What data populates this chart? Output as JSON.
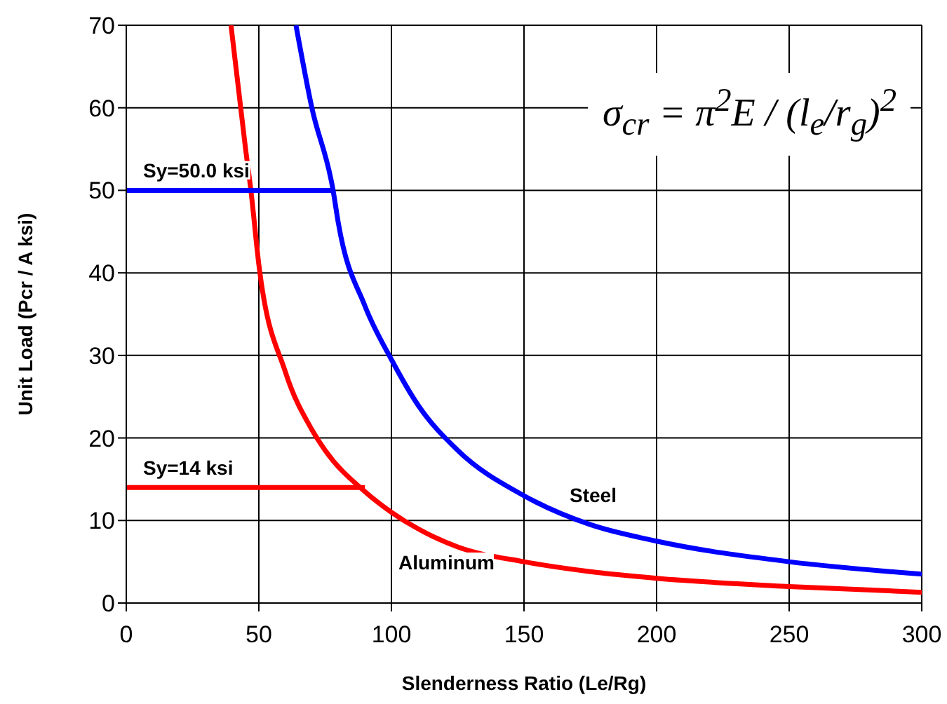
{
  "chart_data": {
    "type": "line",
    "xlabel": "Slenderness Ratio  (Le/Rg)",
    "ylabel": "Unit Load  (Pcr / A  ksi)",
    "xlim": [
      0,
      300
    ],
    "xticks": [
      0,
      50,
      100,
      150,
      200,
      250,
      300
    ],
    "ylim": [
      0,
      70
    ],
    "yticks": [
      0,
      10,
      20,
      30,
      40,
      50,
      60,
      70
    ],
    "grid": true,
    "series": [
      {
        "color": "#0000ff",
        "x": [
          64,
          70,
          78,
          80,
          90,
          100,
          110,
          125,
          150,
          175,
          200,
          250,
          300
        ],
        "values": [
          70,
          60,
          50,
          46,
          36,
          29.5,
          24,
          18.5,
          13,
          9.5,
          7.5,
          5,
          3.5
        ]
      },
      {
        "color": "#ff0000",
        "x": [
          39.5,
          45,
          47,
          50,
          60,
          70,
          75,
          90,
          100,
          110,
          125,
          150,
          175,
          200,
          250,
          300
        ],
        "values": [
          70,
          55,
          50,
          41,
          28,
          21,
          18.5,
          13.5,
          11,
          9,
          6.8,
          5,
          3.8,
          3,
          2,
          1.3
        ]
      },
      {
        "color": "#0000ff",
        "x": [
          0,
          78
        ],
        "values": [
          50,
          50
        ]
      },
      {
        "color": "#ff0000",
        "x": [
          0,
          90
        ],
        "values": [
          14,
          14
        ]
      }
    ],
    "annotations": [
      {
        "text": "Sy=50.0 ksi",
        "x": 0,
        "y": 50
      },
      {
        "text": "Sy=14 ksi",
        "x": 0,
        "y": 14
      },
      "Steel",
      "Aluminum",
      "σ$_{cr}$ = π$^{2}$E / (l$_{e}$/r$_{g}$)$^{2}$"
    ]
  }
}
